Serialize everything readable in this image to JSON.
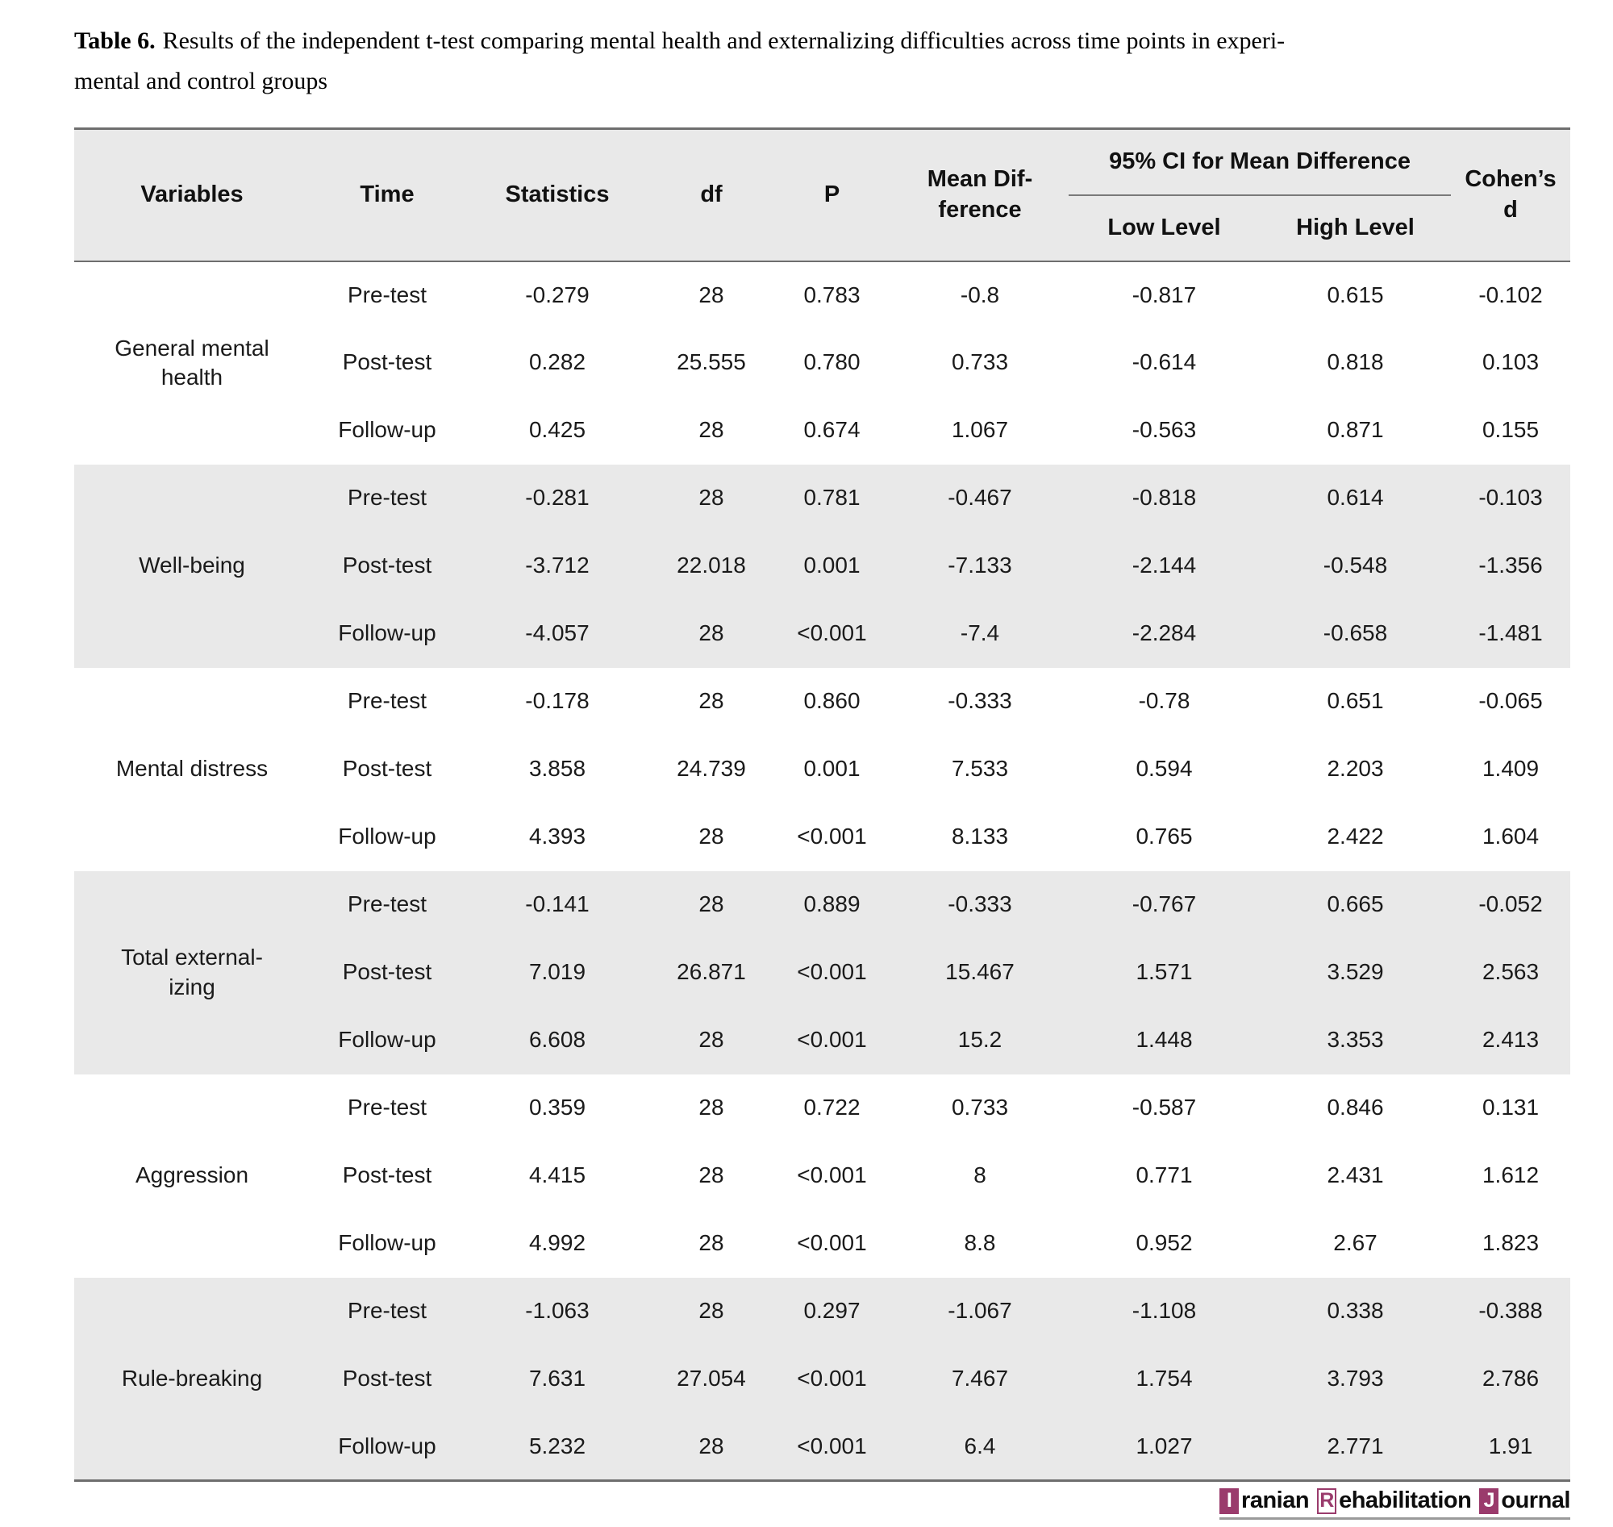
{
  "title": {
    "label": "Table 6.",
    "text": "Results of the independent t-test comparing mental health and externalizing difficulties across time points in experi-\nmental and control groups"
  },
  "table": {
    "header": {
      "variables": "Variables",
      "time": "Time",
      "statistics": "Statistics",
      "df": "df",
      "p": "P",
      "mean_difference": "Mean Dif-\nference",
      "ci_group": "95% CI for Mean Difference",
      "ci_low": "Low Level",
      "ci_high": "High Level",
      "cohens_d": "Cohen’s\nd"
    },
    "groups": [
      {
        "variable": "General mental\nhealth",
        "rows": [
          {
            "time": "Pre-test",
            "statistics": "-0.279",
            "df": "28",
            "p": "0.783",
            "mean_difference": "-0.8",
            "ci_low": "-0.817",
            "ci_high": "0.615",
            "cohens_d": "-0.102"
          },
          {
            "time": "Post-test",
            "statistics": "0.282",
            "df": "25.555",
            "p": "0.780",
            "mean_difference": "0.733",
            "ci_low": "-0.614",
            "ci_high": "0.818",
            "cohens_d": "0.103"
          },
          {
            "time": "Follow-up",
            "statistics": "0.425",
            "df": "28",
            "p": "0.674",
            "mean_difference": "1.067",
            "ci_low": "-0.563",
            "ci_high": "0.871",
            "cohens_d": "0.155"
          }
        ]
      },
      {
        "variable": "Well-being",
        "rows": [
          {
            "time": "Pre-test",
            "statistics": "-0.281",
            "df": "28",
            "p": "0.781",
            "mean_difference": "-0.467",
            "ci_low": "-0.818",
            "ci_high": "0.614",
            "cohens_d": "-0.103"
          },
          {
            "time": "Post-test",
            "statistics": "-3.712",
            "df": "22.018",
            "p": "0.001",
            "mean_difference": "-7.133",
            "ci_low": "-2.144",
            "ci_high": "-0.548",
            "cohens_d": "-1.356"
          },
          {
            "time": "Follow-up",
            "statistics": "-4.057",
            "df": "28",
            "p": "<0.001",
            "mean_difference": "-7.4",
            "ci_low": "-2.284",
            "ci_high": "-0.658",
            "cohens_d": "-1.481"
          }
        ]
      },
      {
        "variable": "Mental distress",
        "rows": [
          {
            "time": "Pre-test",
            "statistics": "-0.178",
            "df": "28",
            "p": "0.860",
            "mean_difference": "-0.333",
            "ci_low": "-0.78",
            "ci_high": "0.651",
            "cohens_d": "-0.065"
          },
          {
            "time": "Post-test",
            "statistics": "3.858",
            "df": "24.739",
            "p": "0.001",
            "mean_difference": "7.533",
            "ci_low": "0.594",
            "ci_high": "2.203",
            "cohens_d": "1.409"
          },
          {
            "time": "Follow-up",
            "statistics": "4.393",
            "df": "28",
            "p": "<0.001",
            "mean_difference": "8.133",
            "ci_low": "0.765",
            "ci_high": "2.422",
            "cohens_d": "1.604"
          }
        ]
      },
      {
        "variable": "Total external-\nizing",
        "rows": [
          {
            "time": "Pre-test",
            "statistics": "-0.141",
            "df": "28",
            "p": "0.889",
            "mean_difference": "-0.333",
            "ci_low": "-0.767",
            "ci_high": "0.665",
            "cohens_d": "-0.052"
          },
          {
            "time": "Post-test",
            "statistics": "7.019",
            "df": "26.871",
            "p": "<0.001",
            "mean_difference": "15.467",
            "ci_low": "1.571",
            "ci_high": "3.529",
            "cohens_d": "2.563"
          },
          {
            "time": "Follow-up",
            "statistics": "6.608",
            "df": "28",
            "p": "<0.001",
            "mean_difference": "15.2",
            "ci_low": "1.448",
            "ci_high": "3.353",
            "cohens_d": "2.413"
          }
        ]
      },
      {
        "variable": "Aggression",
        "rows": [
          {
            "time": "Pre-test",
            "statistics": "0.359",
            "df": "28",
            "p": "0.722",
            "mean_difference": "0.733",
            "ci_low": "-0.587",
            "ci_high": "0.846",
            "cohens_d": "0.131"
          },
          {
            "time": "Post-test",
            "statistics": "4.415",
            "df": "28",
            "p": "<0.001",
            "mean_difference": "8",
            "ci_low": "0.771",
            "ci_high": "2.431",
            "cohens_d": "1.612"
          },
          {
            "time": "Follow-up",
            "statistics": "4.992",
            "df": "28",
            "p": "<0.001",
            "mean_difference": "8.8",
            "ci_low": "0.952",
            "ci_high": "2.67",
            "cohens_d": "1.823"
          }
        ]
      },
      {
        "variable": "Rule-breaking",
        "rows": [
          {
            "time": "Pre-test",
            "statistics": "-1.063",
            "df": "28",
            "p": "0.297",
            "mean_difference": "-1.067",
            "ci_low": "-1.108",
            "ci_high": "0.338",
            "cohens_d": "-0.388"
          },
          {
            "time": "Post-test",
            "statistics": "7.631",
            "df": "27.054",
            "p": "<0.001",
            "mean_difference": "7.467",
            "ci_low": "1.754",
            "ci_high": "3.793",
            "cohens_d": "2.786"
          },
          {
            "time": "Follow-up",
            "statistics": "5.232",
            "df": "28",
            "p": "<0.001",
            "mean_difference": "6.4",
            "ci_low": "1.027",
            "ci_high": "2.771",
            "cohens_d": "1.91"
          }
        ]
      }
    ]
  },
  "footer": {
    "journal_logo": {
      "word1_initial": "I",
      "word1_rest": "ranian",
      "word2_initial": "R",
      "word2_rest": "ehabilitation",
      "word3_initial": "J",
      "word3_rest": "ournal",
      "accent_color": "#9a3b6c"
    }
  },
  "colors": {
    "band": "#e9e9e9",
    "rule": "#6e6e6e",
    "text": "#1a1a1a"
  }
}
